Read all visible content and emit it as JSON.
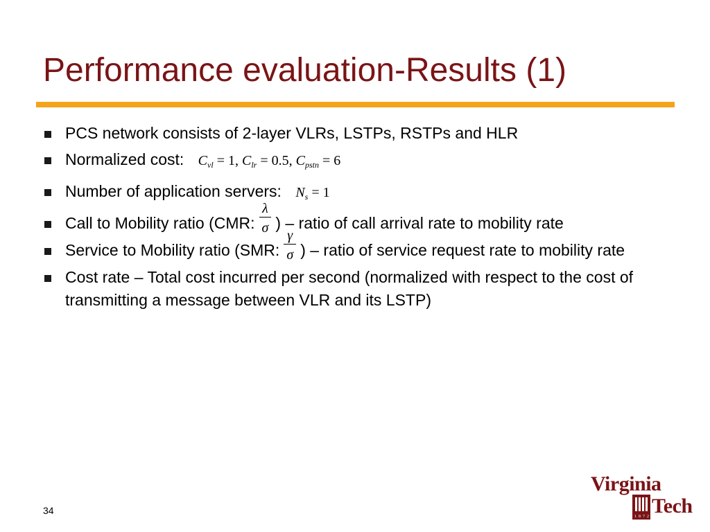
{
  "slide": {
    "title": "Performance evaluation-Results (1)",
    "page_number": "34"
  },
  "bullets": [
    {
      "text": "PCS network consists of 2-layer VLRs, LSTPs, RSTPs and HLR"
    },
    {
      "text": "Normalized cost:",
      "formula": {
        "c_vl_sym": "C",
        "c_vl_sub": "vl",
        "c_vl_val": "= 1,",
        "c_lr_sym": "C",
        "c_lr_sub": "lr",
        "c_lr_val": "= 0.5,",
        "c_pstn_sym": "C",
        "c_pstn_sub": "pstn",
        "c_pstn_val": "= 6"
      }
    },
    {
      "text": "Number of application servers:",
      "formula": {
        "sym": "N",
        "sub": "s",
        "val": "= 1"
      }
    },
    {
      "text_before": "Call to Mobility ratio (CMR:",
      "numerator": "λ",
      "denominator": "σ",
      "text_after": ") – ratio of call arrival rate to mobility rate"
    },
    {
      "text_before": "Service to Mobility ratio (SMR:",
      "numerator": "γ",
      "denominator": "σ",
      "text_after": ") – ratio of service request rate to mobility rate"
    },
    {
      "text": "Cost rate – Total cost incurred per second (normalized with respect to the cost of transmitting a message between VLR and its LSTP)"
    }
  ],
  "logo": {
    "line1": "Virginia",
    "line2": "Tech",
    "year_digits": [
      "1",
      "8",
      "7",
      "2"
    ]
  },
  "colors": {
    "title": "#7a1416",
    "rule": "#f5a31a",
    "logo": "#7a1416"
  }
}
